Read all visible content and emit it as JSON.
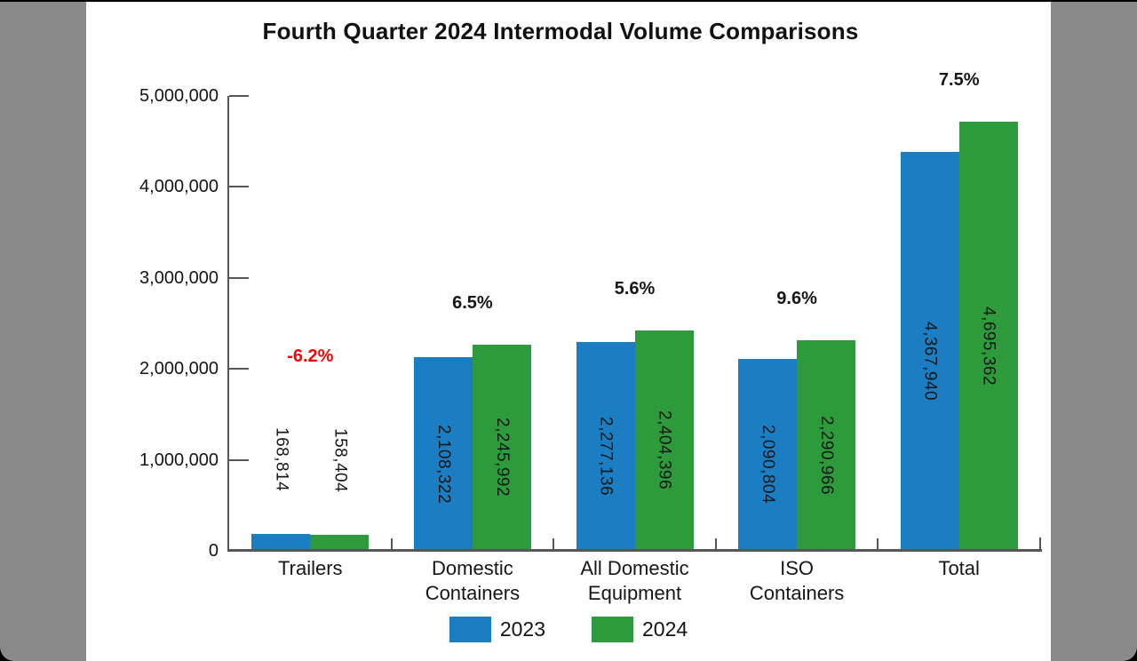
{
  "title": "Fourth Quarter 2024 Intermodal Volume Comparisons",
  "colors": {
    "series_2023": "#1b7ec2",
    "series_2024": "#2d9a3c",
    "negative_pct": "#f40404",
    "positive_pct": "#161616",
    "axis": "#565656",
    "side_panels": "#8a8a8a",
    "chart_background": "#ffffff",
    "outer_background": "#000000"
  },
  "legend": {
    "items": [
      {
        "label": "2023",
        "color": "#1b7ec2"
      },
      {
        "label": "2024",
        "color": "#2d9a3c"
      }
    ]
  },
  "y_axis": {
    "tick_labels": [
      "5,000,000",
      "4,000,000",
      "3,000,000",
      "2,000,000",
      "1,000,000",
      "0"
    ],
    "tick_values": [
      5000000,
      4000000,
      3000000,
      2000000,
      1000000,
      0
    ]
  },
  "chart_data": {
    "type": "bar",
    "title": "Fourth Quarter 2024 Intermodal Volume Comparisons",
    "categories": [
      "Trailers",
      "Domestic Containers",
      "All Domestic Equipment",
      "ISO Containers",
      "Total"
    ],
    "category_label_lines": [
      [
        "Trailers"
      ],
      [
        "Domestic",
        "Containers"
      ],
      [
        "All Domestic",
        "Equipment"
      ],
      [
        "ISO",
        "Containers"
      ],
      [
        "Total"
      ]
    ],
    "series": [
      {
        "name": "2023",
        "color": "#1b7ec2",
        "values": [
          168814,
          2108322,
          2277136,
          2090804,
          4367940
        ],
        "value_labels": [
          "168,814",
          "2,108,322",
          "2,277,136",
          "2,090,804",
          "4,367,940"
        ]
      },
      {
        "name": "2024",
        "color": "#2d9a3c",
        "values": [
          158404,
          2245992,
          2404396,
          2290966,
          4695362
        ],
        "value_labels": [
          "158,404",
          "2,245,992",
          "2,404,396",
          "2,290,966",
          "4,695,362"
        ]
      }
    ],
    "pct_change_labels": [
      "-6.2%",
      "6.5%",
      "5.6%",
      "9.6%",
      "7.5%"
    ],
    "xlabel": "",
    "ylabel": "",
    "ylim": [
      0,
      5000000
    ],
    "grid": false,
    "legend_position": "bottom"
  }
}
